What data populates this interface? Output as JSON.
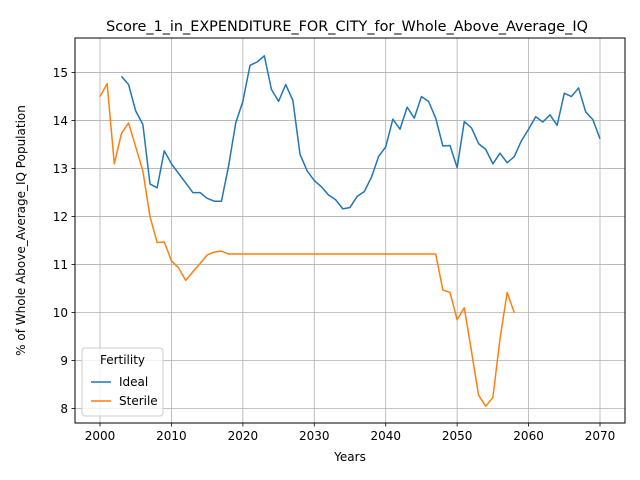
{
  "chart_data": {
    "type": "line",
    "title": "Score_1_in_EXPENDITURE_FOR_CITY_for_Whole_Above_Average_IQ",
    "xlabel": "Years",
    "ylabel": "% of Whole Above_Average_IQ Population",
    "xlim": [
      1996.5,
      2073.5
    ],
    "ylim": [
      7.7,
      15.72
    ],
    "xticks": [
      2000,
      2010,
      2020,
      2030,
      2040,
      2050,
      2060,
      2070
    ],
    "yticks": [
      8,
      9,
      10,
      11,
      12,
      13,
      14,
      15
    ],
    "grid": true,
    "legend": {
      "title": "Fertility",
      "position": "lower-left"
    },
    "series": [
      {
        "name": "Ideal",
        "color": "#1f77b4",
        "x": [
          2003,
          2004,
          2005,
          2006,
          2007,
          2008,
          2009,
          2010,
          2011,
          2012,
          2013,
          2014,
          2015,
          2016,
          2017,
          2018,
          2019,
          2020,
          2021,
          2022,
          2023,
          2024,
          2025,
          2026,
          2027,
          2028,
          2029,
          2030,
          2031,
          2032,
          2033,
          2034,
          2035,
          2036,
          2037,
          2038,
          2039,
          2040,
          2041,
          2042,
          2043,
          2044,
          2045,
          2046,
          2047,
          2048,
          2049,
          2050,
          2051,
          2052,
          2053,
          2054,
          2055,
          2056,
          2057,
          2058,
          2059,
          2060,
          2061,
          2062,
          2063,
          2064,
          2065,
          2066,
          2067,
          2068,
          2069,
          2070
        ],
        "y": [
          14.92,
          14.75,
          14.2,
          13.92,
          12.68,
          12.6,
          13.37,
          13.1,
          12.9,
          12.7,
          12.5,
          12.5,
          12.38,
          12.32,
          12.32,
          13.05,
          13.95,
          14.4,
          15.15,
          15.22,
          15.35,
          14.65,
          14.4,
          14.75,
          14.42,
          13.3,
          12.95,
          12.75,
          12.62,
          12.45,
          12.35,
          12.16,
          12.19,
          12.42,
          12.52,
          12.82,
          13.25,
          13.45,
          14.03,
          13.82,
          14.28,
          14.05,
          14.5,
          14.4,
          14.05,
          13.47,
          13.48,
          13.02,
          13.98,
          13.85,
          13.52,
          13.4,
          13.1,
          13.32,
          13.12,
          13.25,
          13.58,
          13.82,
          14.08,
          13.97,
          14.12,
          13.9,
          14.57,
          14.5,
          14.68,
          14.18,
          14.02,
          13.62
        ]
      },
      {
        "name": "Sterile",
        "color": "#ff7f0e",
        "x": [
          2000,
          2001,
          2002,
          2003,
          2004,
          2005,
          2006,
          2007,
          2008,
          2009,
          2010,
          2011,
          2012,
          2013,
          2014,
          2015,
          2016,
          2017,
          2018,
          2019,
          2020,
          2021,
          2022,
          2023,
          2024,
          2025,
          2026,
          2027,
          2028,
          2029,
          2030,
          2031,
          2032,
          2033,
          2034,
          2035,
          2036,
          2037,
          2038,
          2039,
          2040,
          2041,
          2042,
          2043,
          2044,
          2045,
          2046,
          2047,
          2048,
          2049,
          2050,
          2051,
          2052,
          2053,
          2054,
          2055,
          2056,
          2057,
          2058
        ],
        "y": [
          14.5,
          14.77,
          13.1,
          13.73,
          13.95,
          13.45,
          12.95,
          12.0,
          11.46,
          11.47,
          11.08,
          10.93,
          10.67,
          10.85,
          11.02,
          11.2,
          11.26,
          11.28,
          11.22,
          11.22,
          11.22,
          11.22,
          11.22,
          11.22,
          11.22,
          11.22,
          11.22,
          11.22,
          11.22,
          11.22,
          11.22,
          11.22,
          11.22,
          11.22,
          11.22,
          11.22,
          11.22,
          11.22,
          11.22,
          11.22,
          11.22,
          11.22,
          11.22,
          11.22,
          11.22,
          11.22,
          11.22,
          11.22,
          10.47,
          10.42,
          9.85,
          10.1,
          9.2,
          8.28,
          8.05,
          8.23,
          9.45,
          10.42,
          10.0
        ]
      }
    ]
  }
}
